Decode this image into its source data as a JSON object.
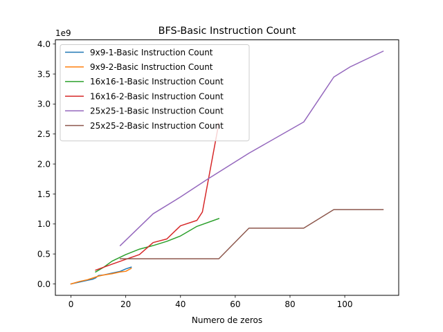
{
  "chart_data": {
    "type": "line",
    "title": "BFS-Basic Instruction Count",
    "xlabel": "Numero de zeros",
    "ylabel": "",
    "offset_label": "1e9",
    "xlim": [
      -5.7,
      119.7
    ],
    "ylim": [
      -0.19,
      4.07
    ],
    "xticks": [
      0,
      20,
      40,
      60,
      80,
      100
    ],
    "yticks": [
      0.0,
      0.5,
      1.0,
      1.5,
      2.0,
      2.5,
      3.0,
      3.5,
      4.0
    ],
    "yticklabels": [
      "0.0",
      "0.5",
      "1.0",
      "1.5",
      "2.0",
      "2.5",
      "3.0",
      "3.5",
      "4.0"
    ],
    "grid": false,
    "legend_position": "upper-left",
    "series": [
      {
        "name": "9x9-1-Basic Instruction Count",
        "color": "#1f77b4",
        "x": [
          0,
          3,
          6,
          8,
          9,
          10,
          12,
          15,
          18,
          20,
          22
        ],
        "y": [
          0.0,
          0.03,
          0.06,
          0.08,
          0.1,
          0.14,
          0.15,
          0.18,
          0.21,
          0.25,
          0.28
        ]
      },
      {
        "name": "9x9-2-Basic Instruction Count",
        "color": "#ff7f0e",
        "x": [
          0,
          3,
          6,
          8,
          10,
          12,
          15,
          18,
          20,
          22
        ],
        "y": [
          0.0,
          0.04,
          0.07,
          0.1,
          0.13,
          0.15,
          0.17,
          0.2,
          0.21,
          0.26
        ]
      },
      {
        "name": "16x16-1-Basic Instruction Count",
        "color": "#2ca02c",
        "x": [
          9,
          12,
          15,
          20,
          25,
          30,
          35,
          40,
          46,
          54
        ],
        "y": [
          0.2,
          0.28,
          0.38,
          0.49,
          0.58,
          0.64,
          0.71,
          0.8,
          0.96,
          1.09
        ]
      },
      {
        "name": "16x16-2-Basic Instruction Count",
        "color": "#d62728",
        "x": [
          9,
          15,
          20,
          25,
          30,
          35,
          40,
          46,
          48,
          54
        ],
        "y": [
          0.23,
          0.33,
          0.41,
          0.49,
          0.69,
          0.75,
          0.97,
          1.06,
          1.2,
          2.68
        ]
      },
      {
        "name": "25x25-1-Basic Instruction Count",
        "color": "#9467bd",
        "x": [
          18,
          30,
          40,
          50,
          65,
          85,
          96,
          102,
          114
        ],
        "y": [
          0.64,
          1.17,
          1.45,
          1.75,
          2.18,
          2.7,
          3.45,
          3.62,
          3.88
        ]
      },
      {
        "name": "25x25-2-Basic Instruction Count",
        "color": "#8c564b",
        "x": [
          18,
          54,
          65,
          85,
          96,
          114
        ],
        "y": [
          0.42,
          0.42,
          0.93,
          0.93,
          1.24,
          1.24
        ]
      }
    ]
  }
}
